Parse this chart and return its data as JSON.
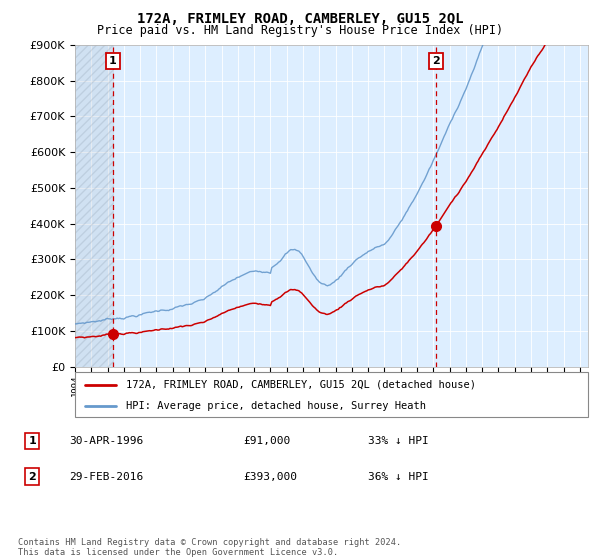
{
  "title": "172A, FRIMLEY ROAD, CAMBERLEY, GU15 2QL",
  "subtitle": "Price paid vs. HM Land Registry's House Price Index (HPI)",
  "property_label": "172A, FRIMLEY ROAD, CAMBERLEY, GU15 2QL (detached house)",
  "hpi_label": "HPI: Average price, detached house, Surrey Heath",
  "sale1_date": "30-APR-1996",
  "sale1_price": "£91,000",
  "sale1_hpi": "33% ↓ HPI",
  "sale1_year": 1996.33,
  "sale1_value": 91000,
  "sale2_date": "29-FEB-2016",
  "sale2_price": "£393,000",
  "sale2_hpi": "36% ↓ HPI",
  "sale2_year": 2016.17,
  "sale2_value": 393000,
  "ylim": [
    0,
    900000
  ],
  "xlim_start": 1994.0,
  "xlim_end": 2025.5,
  "red_color": "#cc0000",
  "blue_color": "#6699cc",
  "grid_color": "#cccccc",
  "bg_color": "#ddeeff",
  "footnote": "Contains HM Land Registry data © Crown copyright and database right 2024.\nThis data is licensed under the Open Government Licence v3.0."
}
